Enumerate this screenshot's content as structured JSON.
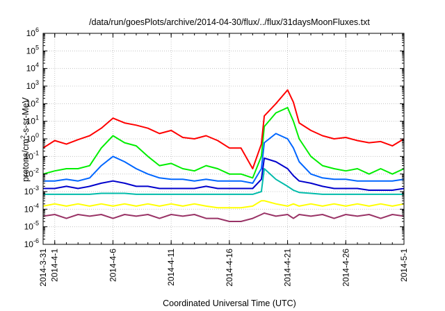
{
  "chart_data": {
    "type": "line",
    "title": "/data/run/goesPlots/archive/2014-04-30/flux/../flux/31daysMoonFluxes.txt",
    "xlabel": "Coordinated Universal Time (UTC)",
    "ylabel": {
      "prefix": "protons/cm",
      "sup": "2",
      "suffix": "-s-sr-MeV"
    },
    "x_scale": "date",
    "xlim": [
      "2014-03-31",
      "2014-05-01"
    ],
    "x_ticks": [
      "2014-3-31",
      "2014-4-1",
      "2014-4-6",
      "2014-4-11",
      "2014-4-16",
      "2014-4-21",
      "2014-4-26",
      "2014-5-1"
    ],
    "x_tick_dates": [
      "2014-03-31",
      "2014-04-01",
      "2014-04-06",
      "2014-04-11",
      "2014-04-16",
      "2014-04-21",
      "2014-04-26",
      "2014-05-01"
    ],
    "y_scale": "log",
    "ylim": [
      1e-06,
      1000000.0
    ],
    "y_tick_labels": [
      {
        "base": "10",
        "exp": "-6"
      },
      {
        "base": "10",
        "exp": "-5"
      },
      {
        "base": "10",
        "exp": "-4"
      },
      {
        "base": "10",
        "exp": "-3"
      },
      {
        "base": "10",
        "exp": "-2"
      },
      {
        "base": "10",
        "exp": "-1"
      },
      {
        "base": "10",
        "exp": "0"
      },
      {
        "base": "10",
        "exp": "1"
      },
      {
        "base": "10",
        "exp": "2"
      },
      {
        "base": "10",
        "exp": "3"
      },
      {
        "base": "10",
        "exp": "4"
      },
      {
        "base": "10",
        "exp": "5"
      },
      {
        "base": "10",
        "exp": "6"
      }
    ],
    "grid": true,
    "series": [
      {
        "color": "#ff0000",
        "points": [
          [
            "2014-03-31",
            0.3
          ],
          [
            "2014-04-01",
            0.8
          ],
          [
            "2014-04-02",
            0.5
          ],
          [
            "2014-04-03",
            0.9
          ],
          [
            "2014-04-04",
            1.5
          ],
          [
            "2014-04-05",
            4
          ],
          [
            "2014-04-06",
            15
          ],
          [
            "2014-04-07",
            8
          ],
          [
            "2014-04-08",
            6
          ],
          [
            "2014-04-09",
            4
          ],
          [
            "2014-04-10",
            2
          ],
          [
            "2014-04-11",
            3
          ],
          [
            "2014-04-12",
            1.2
          ],
          [
            "2014-04-13",
            1
          ],
          [
            "2014-04-14",
            1.5
          ],
          [
            "2014-04-15",
            0.8
          ],
          [
            "2014-04-16",
            0.3
          ],
          [
            "2014-04-17",
            0.3
          ],
          [
            "2014-04-18",
            0.02
          ],
          [
            "2014-04-18T18:00",
            0.5
          ],
          [
            "2014-04-19",
            20
          ],
          [
            "2014-04-20",
            100
          ],
          [
            "2014-04-21",
            600
          ],
          [
            "2014-04-21T12:00",
            120
          ],
          [
            "2014-04-22",
            8
          ],
          [
            "2014-04-23",
            3
          ],
          [
            "2014-04-24",
            1.5
          ],
          [
            "2014-04-25",
            1
          ],
          [
            "2014-04-26",
            1.2
          ],
          [
            "2014-04-27",
            0.8
          ],
          [
            "2014-04-28",
            0.6
          ],
          [
            "2014-04-29",
            0.7
          ],
          [
            "2014-04-30",
            0.4
          ],
          [
            "2014-05-01",
            1
          ]
        ]
      },
      {
        "color": "#00ee00",
        "points": [
          [
            "2014-03-31",
            0.01
          ],
          [
            "2014-04-01",
            0.015
          ],
          [
            "2014-04-02",
            0.02
          ],
          [
            "2014-04-03",
            0.02
          ],
          [
            "2014-04-04",
            0.03
          ],
          [
            "2014-04-05",
            0.3
          ],
          [
            "2014-04-06",
            1.5
          ],
          [
            "2014-04-07",
            0.6
          ],
          [
            "2014-04-08",
            0.4
          ],
          [
            "2014-04-09",
            0.1
          ],
          [
            "2014-04-10",
            0.03
          ],
          [
            "2014-04-11",
            0.04
          ],
          [
            "2014-04-12",
            0.02
          ],
          [
            "2014-04-13",
            0.015
          ],
          [
            "2014-04-14",
            0.03
          ],
          [
            "2014-04-15",
            0.02
          ],
          [
            "2014-04-16",
            0.01
          ],
          [
            "2014-04-17",
            0.01
          ],
          [
            "2014-04-18",
            0.006
          ],
          [
            "2014-04-18T18:00",
            0.1
          ],
          [
            "2014-04-19",
            5
          ],
          [
            "2014-04-20",
            30
          ],
          [
            "2014-04-21",
            60
          ],
          [
            "2014-04-21T12:00",
            10
          ],
          [
            "2014-04-22",
            1
          ],
          [
            "2014-04-23",
            0.1
          ],
          [
            "2014-04-24",
            0.03
          ],
          [
            "2014-04-25",
            0.02
          ],
          [
            "2014-04-26",
            0.015
          ],
          [
            "2014-04-27",
            0.02
          ],
          [
            "2014-04-28",
            0.01
          ],
          [
            "2014-04-29",
            0.02
          ],
          [
            "2014-04-30",
            0.01
          ],
          [
            "2014-05-01",
            0.02
          ]
        ]
      },
      {
        "color": "#0066ff",
        "points": [
          [
            "2014-03-31",
            0.004
          ],
          [
            "2014-04-01",
            0.004
          ],
          [
            "2014-04-02",
            0.005
          ],
          [
            "2014-04-03",
            0.004
          ],
          [
            "2014-04-04",
            0.006
          ],
          [
            "2014-04-05",
            0.03
          ],
          [
            "2014-04-06",
            0.1
          ],
          [
            "2014-04-07",
            0.05
          ],
          [
            "2014-04-08",
            0.02
          ],
          [
            "2014-04-09",
            0.01
          ],
          [
            "2014-04-10",
            0.006
          ],
          [
            "2014-04-11",
            0.005
          ],
          [
            "2014-04-12",
            0.005
          ],
          [
            "2014-04-13",
            0.004
          ],
          [
            "2014-04-14",
            0.005
          ],
          [
            "2014-04-15",
            0.004
          ],
          [
            "2014-04-16",
            0.004
          ],
          [
            "2014-04-17",
            0.004
          ],
          [
            "2014-04-18",
            0.003
          ],
          [
            "2014-04-18T18:00",
            0.02
          ],
          [
            "2014-04-19",
            0.6
          ],
          [
            "2014-04-20",
            2
          ],
          [
            "2014-04-21",
            1
          ],
          [
            "2014-04-21T12:00",
            0.3
          ],
          [
            "2014-04-22",
            0.05
          ],
          [
            "2014-04-23",
            0.01
          ],
          [
            "2014-04-24",
            0.006
          ],
          [
            "2014-04-25",
            0.005
          ],
          [
            "2014-04-26",
            0.005
          ],
          [
            "2014-04-27",
            0.004
          ],
          [
            "2014-04-28",
            0.004
          ],
          [
            "2014-04-29",
            0.004
          ],
          [
            "2014-04-30",
            0.004
          ],
          [
            "2014-05-01",
            0.005
          ]
        ]
      },
      {
        "color": "#0000cc",
        "points": [
          [
            "2014-03-31",
            0.0015
          ],
          [
            "2014-04-01",
            0.0015
          ],
          [
            "2014-04-02",
            0.002
          ],
          [
            "2014-04-03",
            0.0015
          ],
          [
            "2014-04-04",
            0.002
          ],
          [
            "2014-04-05",
            0.003
          ],
          [
            "2014-04-06",
            0.004
          ],
          [
            "2014-04-07",
            0.003
          ],
          [
            "2014-04-08",
            0.002
          ],
          [
            "2014-04-09",
            0.002
          ],
          [
            "2014-04-10",
            0.0015
          ],
          [
            "2014-04-11",
            0.0015
          ],
          [
            "2014-04-12",
            0.0015
          ],
          [
            "2014-04-13",
            0.0015
          ],
          [
            "2014-04-14",
            0.002
          ],
          [
            "2014-04-15",
            0.0015
          ],
          [
            "2014-04-16",
            0.0015
          ],
          [
            "2014-04-17",
            0.0015
          ],
          [
            "2014-04-18",
            0.0015
          ],
          [
            "2014-04-18T18:00",
            0.005
          ],
          [
            "2014-04-19",
            0.08
          ],
          [
            "2014-04-20",
            0.05
          ],
          [
            "2014-04-21",
            0.02
          ],
          [
            "2014-04-21T12:00",
            0.008
          ],
          [
            "2014-04-22",
            0.004
          ],
          [
            "2014-04-23",
            0.003
          ],
          [
            "2014-04-24",
            0.002
          ],
          [
            "2014-04-25",
            0.0015
          ],
          [
            "2014-04-26",
            0.0015
          ],
          [
            "2014-04-27",
            0.0015
          ],
          [
            "2014-04-28",
            0.0012
          ],
          [
            "2014-04-29",
            0.0012
          ],
          [
            "2014-04-30",
            0.0012
          ],
          [
            "2014-05-01",
            0.0015
          ]
        ]
      },
      {
        "color": "#00bbaa",
        "points": [
          [
            "2014-03-31",
            0.0007
          ],
          [
            "2014-04-01",
            0.0007
          ],
          [
            "2014-04-02",
            0.0007
          ],
          [
            "2014-04-03",
            0.0007
          ],
          [
            "2014-04-04",
            0.0007
          ],
          [
            "2014-04-05",
            0.0008
          ],
          [
            "2014-04-06",
            0.0008
          ],
          [
            "2014-04-07",
            0.0008
          ],
          [
            "2014-04-08",
            0.0007
          ],
          [
            "2014-04-09",
            0.0007
          ],
          [
            "2014-04-10",
            0.0007
          ],
          [
            "2014-04-11",
            0.0007
          ],
          [
            "2014-04-12",
            0.0007
          ],
          [
            "2014-04-13",
            0.0007
          ],
          [
            "2014-04-14",
            0.0007
          ],
          [
            "2014-04-15",
            0.0007
          ],
          [
            "2014-04-16",
            0.0007
          ],
          [
            "2014-04-17",
            0.0007
          ],
          [
            "2014-04-18",
            0.0007
          ],
          [
            "2014-04-18T18:00",
            0.001
          ],
          [
            "2014-04-19",
            0.02
          ],
          [
            "2014-04-20",
            0.005
          ],
          [
            "2014-04-21",
            0.002
          ],
          [
            "2014-04-21T12:00",
            0.0012
          ],
          [
            "2014-04-22",
            0.0009
          ],
          [
            "2014-04-23",
            0.0008
          ],
          [
            "2014-04-24",
            0.0007
          ],
          [
            "2014-04-25",
            0.0007
          ],
          [
            "2014-04-26",
            0.0007
          ],
          [
            "2014-04-27",
            0.0007
          ],
          [
            "2014-04-28",
            0.0007
          ],
          [
            "2014-04-29",
            0.0007
          ],
          [
            "2014-04-30",
            0.0007
          ],
          [
            "2014-05-01",
            0.0007
          ]
        ]
      },
      {
        "color": "#ffff00",
        "points": [
          [
            "2014-03-31",
            0.00015
          ],
          [
            "2014-04-01",
            0.0002
          ],
          [
            "2014-04-02",
            0.00015
          ],
          [
            "2014-04-03",
            0.0002
          ],
          [
            "2014-04-04",
            0.00015
          ],
          [
            "2014-04-05",
            0.0002
          ],
          [
            "2014-04-06",
            0.00015
          ],
          [
            "2014-04-07",
            0.0002
          ],
          [
            "2014-04-08",
            0.00015
          ],
          [
            "2014-04-09",
            0.0002
          ],
          [
            "2014-04-10",
            0.00015
          ],
          [
            "2014-04-11",
            0.0002
          ],
          [
            "2014-04-12",
            0.00015
          ],
          [
            "2014-04-13",
            0.0002
          ],
          [
            "2014-04-14",
            0.00015
          ],
          [
            "2014-04-15",
            0.00012
          ],
          [
            "2014-04-16",
            0.00012
          ],
          [
            "2014-04-17",
            0.00012
          ],
          [
            "2014-04-18",
            0.00015
          ],
          [
            "2014-04-18T18:00",
            0.0003
          ],
          [
            "2014-04-19",
            0.0003
          ],
          [
            "2014-04-20",
            0.0002
          ],
          [
            "2014-04-21",
            0.00015
          ],
          [
            "2014-04-21T12:00",
            0.0002
          ],
          [
            "2014-04-22",
            0.00015
          ],
          [
            "2014-04-23",
            0.0002
          ],
          [
            "2014-04-24",
            0.00015
          ],
          [
            "2014-04-25",
            0.0002
          ],
          [
            "2014-04-26",
            0.00015
          ],
          [
            "2014-04-27",
            0.0002
          ],
          [
            "2014-04-28",
            0.00015
          ],
          [
            "2014-04-29",
            0.0002
          ],
          [
            "2014-04-30",
            0.00015
          ],
          [
            "2014-05-01",
            0.0002
          ]
        ]
      },
      {
        "color": "#993366",
        "points": [
          [
            "2014-03-31",
            4e-05
          ],
          [
            "2014-04-01",
            5e-05
          ],
          [
            "2014-04-02",
            3e-05
          ],
          [
            "2014-04-03",
            5e-05
          ],
          [
            "2014-04-04",
            4e-05
          ],
          [
            "2014-04-05",
            5e-05
          ],
          [
            "2014-04-06",
            3e-05
          ],
          [
            "2014-04-07",
            5e-05
          ],
          [
            "2014-04-08",
            4e-05
          ],
          [
            "2014-04-09",
            5e-05
          ],
          [
            "2014-04-10",
            3e-05
          ],
          [
            "2014-04-11",
            5e-05
          ],
          [
            "2014-04-12",
            4e-05
          ],
          [
            "2014-04-13",
            5e-05
          ],
          [
            "2014-04-14",
            3e-05
          ],
          [
            "2014-04-15",
            3e-05
          ],
          [
            "2014-04-16",
            2e-05
          ],
          [
            "2014-04-17",
            2e-05
          ],
          [
            "2014-04-18",
            3e-05
          ],
          [
            "2014-04-18T18:00",
            5e-05
          ],
          [
            "2014-04-19",
            6e-05
          ],
          [
            "2014-04-20",
            4e-05
          ],
          [
            "2014-04-21",
            5e-05
          ],
          [
            "2014-04-21T12:00",
            3e-05
          ],
          [
            "2014-04-22",
            5e-05
          ],
          [
            "2014-04-23",
            4e-05
          ],
          [
            "2014-04-24",
            5e-05
          ],
          [
            "2014-04-25",
            3e-05
          ],
          [
            "2014-04-26",
            5e-05
          ],
          [
            "2014-04-27",
            4e-05
          ],
          [
            "2014-04-28",
            5e-05
          ],
          [
            "2014-04-29",
            3e-05
          ],
          [
            "2014-04-30",
            5e-05
          ],
          [
            "2014-05-01",
            4e-05
          ]
        ]
      }
    ]
  }
}
